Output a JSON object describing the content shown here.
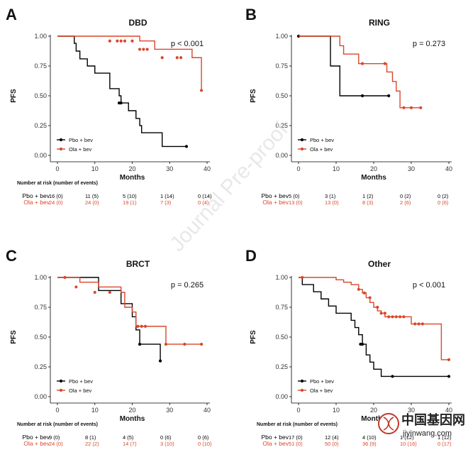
{
  "watermark": {
    "text": "Journal Pre-proof",
    "site_cn": "中国基因网",
    "site_url": "jiyinwang.com"
  },
  "colors": {
    "pbo": "#000000",
    "ola": "#d9472b"
  },
  "chart_data": [
    {
      "type": "line",
      "letter": "A",
      "title": "DBD",
      "pvalue": "p < 0.001",
      "xlabel": "Months",
      "ylabel": "PFS",
      "xlim": [
        0,
        40
      ],
      "ylim": [
        0,
        1
      ],
      "xticks": [
        "0",
        "10",
        "20",
        "30",
        "40"
      ],
      "yticks": [
        "0.00",
        "0.25",
        "0.50",
        "0.75",
        "1.00"
      ],
      "legend_placement": "bottom-left",
      "risk_title": "Number at risk (number of events)",
      "series": [
        {
          "name": "Pbo + bev",
          "color": "#000000",
          "x": [
            0,
            4,
            4.5,
            5,
            6,
            8,
            10,
            14,
            16.5,
            17,
            19,
            21,
            22,
            22.5,
            28,
            34.5
          ],
          "y": [
            1.0,
            1.0,
            0.94,
            0.875,
            0.81,
            0.75,
            0.69,
            0.56,
            0.5,
            0.44,
            0.375,
            0.31,
            0.25,
            0.19,
            0.075,
            0.075
          ],
          "censor_x": [
            16.5,
            17,
            34.5
          ],
          "censor_y": [
            0.44,
            0.44,
            0.075
          ],
          "risk": [
            "16 (0)",
            "11 (5)",
            "5 (10)",
            "1 (14)",
            "0 (14)"
          ]
        },
        {
          "name": "Ola + bev",
          "color": "#d9472b",
          "x": [
            0,
            12,
            22,
            26,
            36,
            38.5
          ],
          "y": [
            1.0,
            1.0,
            0.96,
            0.89,
            0.82,
            0.545
          ],
          "censor_x": [
            14,
            16,
            17,
            18,
            20,
            22,
            23,
            24,
            28,
            32,
            33,
            38.5
          ],
          "censor_y": [
            0.96,
            0.96,
            0.96,
            0.96,
            0.96,
            0.89,
            0.89,
            0.89,
            0.82,
            0.82,
            0.82,
            0.545
          ],
          "risk": [
            "24 (0)",
            "24 (0)",
            "19 (1)",
            "7 (3)",
            "0 (4)"
          ]
        }
      ]
    },
    {
      "type": "line",
      "letter": "B",
      "title": "RING",
      "pvalue": "p = 0.273",
      "xlabel": "Months",
      "ylabel": "PFS",
      "xlim": [
        0,
        40
      ],
      "ylim": [
        0,
        1
      ],
      "xticks": [
        "0",
        "10",
        "20",
        "30",
        "40"
      ],
      "yticks": [
        "0.00",
        "0.25",
        "0.50",
        "0.75",
        "1.00"
      ],
      "legend_placement": "bottom-left",
      "risk_title": "",
      "series": [
        {
          "name": "Pbo + bev",
          "color": "#000000",
          "x": [
            0,
            8,
            8.5,
            11,
            24
          ],
          "y": [
            1.0,
            1.0,
            0.75,
            0.5,
            0.5
          ],
          "censor_x": [
            0,
            17,
            24
          ],
          "censor_y": [
            1.0,
            0.5,
            0.5
          ],
          "risk": [
            "5 (0)",
            "3 (1)",
            "1 (2)",
            "0 (2)",
            "0 (2)"
          ]
        },
        {
          "name": "Ola + bev",
          "color": "#d9472b",
          "x": [
            0,
            8,
            11,
            12,
            13,
            16,
            23,
            23.5,
            25,
            26,
            27,
            32.5
          ],
          "y": [
            1.0,
            1.0,
            0.92,
            0.85,
            0.85,
            0.77,
            0.77,
            0.7,
            0.62,
            0.54,
            0.4,
            0.4
          ],
          "censor_x": [
            17,
            23,
            28,
            30,
            32.5
          ],
          "censor_y": [
            0.77,
            0.77,
            0.4,
            0.4,
            0.4
          ],
          "risk": [
            "13 (0)",
            "13 (0)",
            "8 (3)",
            "2 (6)",
            "0 (6)"
          ]
        }
      ]
    },
    {
      "type": "line",
      "letter": "C",
      "title": "BRCT",
      "pvalue": "p = 0.265",
      "xlabel": "Months",
      "ylabel": "PFS",
      "xlim": [
        0,
        40
      ],
      "ylim": [
        0,
        1
      ],
      "xticks": [
        "0",
        "10",
        "20",
        "30",
        "40"
      ],
      "yticks": [
        "0.00",
        "0.25",
        "0.50",
        "0.75",
        "1.00"
      ],
      "legend_placement": "bottom-left",
      "risk_title": "Number at risk (number of events)",
      "series": [
        {
          "name": "Pbo + bev",
          "color": "#000000",
          "x": [
            0,
            8,
            11,
            17,
            20,
            21,
            22,
            27.5
          ],
          "y": [
            1.0,
            1.0,
            0.89,
            0.78,
            0.67,
            0.56,
            0.44,
            0.3
          ],
          "censor_x": [
            22,
            27.5
          ],
          "censor_y": [
            0.44,
            0.3
          ],
          "risk": [
            "9 (0)",
            "8 (1)",
            "4 (5)",
            "0 (6)",
            "0 (6)"
          ]
        },
        {
          "name": "Ola + bev",
          "color": "#d9472b",
          "x": [
            0,
            5,
            6,
            11,
            17,
            18,
            20,
            21,
            29,
            38.5
          ],
          "y": [
            1.0,
            1.0,
            0.96,
            0.92,
            0.875,
            0.75,
            0.71,
            0.59,
            0.44,
            0.44
          ],
          "censor_x": [
            2,
            5,
            10,
            14,
            21.5,
            22.5,
            23.5,
            29,
            34,
            38.5
          ],
          "censor_y": [
            1.0,
            0.92,
            0.875,
            0.875,
            0.59,
            0.59,
            0.59,
            0.44,
            0.44,
            0.44
          ],
          "risk": [
            "24 (0)",
            "22 (2)",
            "14 (7)",
            "3 (10)",
            "0 (10)"
          ]
        }
      ]
    },
    {
      "type": "line",
      "letter": "D",
      "title": "Other",
      "pvalue": "p < 0.001",
      "xlabel": "Months",
      "ylabel": "PFS",
      "xlim": [
        0,
        40
      ],
      "ylim": [
        0,
        1
      ],
      "xticks": [
        "0",
        "10",
        "20",
        "30",
        "40"
      ],
      "yticks": [
        "0.00",
        "0.25",
        "0.50",
        "0.75",
        "1.00"
      ],
      "legend_placement": "bottom-left",
      "risk_title": "Number at risk (number of events)",
      "series": [
        {
          "name": "Pbo + bev",
          "color": "#000000",
          "x": [
            0,
            1,
            4,
            6,
            8,
            10,
            14,
            15,
            16,
            17,
            18,
            19,
            20,
            22,
            40
          ],
          "y": [
            1.0,
            0.94,
            0.88,
            0.82,
            0.76,
            0.7,
            0.64,
            0.58,
            0.52,
            0.44,
            0.35,
            0.29,
            0.23,
            0.17,
            0.17
          ],
          "censor_x": [
            16.5,
            17,
            25,
            40
          ],
          "censor_y": [
            0.44,
            0.44,
            0.17,
            0.17
          ],
          "risk": [
            "17 (0)",
            "12 (4)",
            "4 (10)",
            "1 (12)",
            "1 (12)"
          ]
        },
        {
          "name": "Ola + bev",
          "color": "#d9472b",
          "x": [
            0,
            8,
            10,
            12,
            14,
            16,
            17,
            18,
            19,
            20,
            21,
            22,
            23,
            30,
            38,
            40
          ],
          "y": [
            1.0,
            1.0,
            0.98,
            0.96,
            0.94,
            0.9,
            0.87,
            0.83,
            0.79,
            0.75,
            0.72,
            0.7,
            0.67,
            0.61,
            0.31,
            0.31
          ],
          "censor_x": [
            1,
            16,
            17.5,
            19,
            21,
            22,
            23,
            24,
            25,
            26,
            27,
            28,
            31,
            32,
            33,
            40
          ],
          "censor_y": [
            1.0,
            0.9,
            0.87,
            0.83,
            0.75,
            0.7,
            0.7,
            0.67,
            0.67,
            0.67,
            0.67,
            0.67,
            0.61,
            0.61,
            0.61,
            0.31
          ],
          "risk": [
            "51 (0)",
            "50 (0)",
            "36 (9)",
            "10 (16)",
            "0 (17)"
          ]
        }
      ]
    }
  ]
}
